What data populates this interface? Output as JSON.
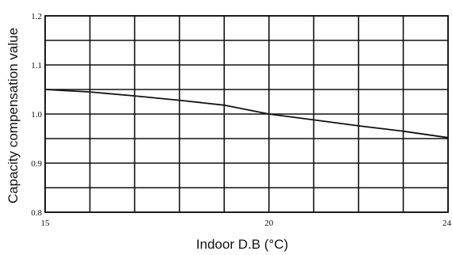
{
  "chart_data": {
    "type": "line",
    "title": "",
    "xlabel": "Indoor D.B (°C)",
    "ylabel": "Capacity compensation value",
    "xlim": [
      15,
      24
    ],
    "ylim": [
      0.8,
      1.2
    ],
    "x_ticks": [
      "15",
      "20",
      "24"
    ],
    "y_ticks": [
      "0.8",
      "0.9",
      "1.0",
      "1.1",
      "1.2"
    ],
    "grid": true,
    "grid_x_step": 1,
    "grid_y_step": 0.05,
    "series": [
      {
        "color": "#111111",
        "x": [
          15,
          16,
          17,
          18,
          19,
          20,
          21,
          22,
          23,
          24
        ],
        "y": [
          1.05,
          1.045,
          1.037,
          1.028,
          1.018,
          1.0,
          0.988,
          0.976,
          0.965,
          0.952
        ]
      }
    ]
  }
}
